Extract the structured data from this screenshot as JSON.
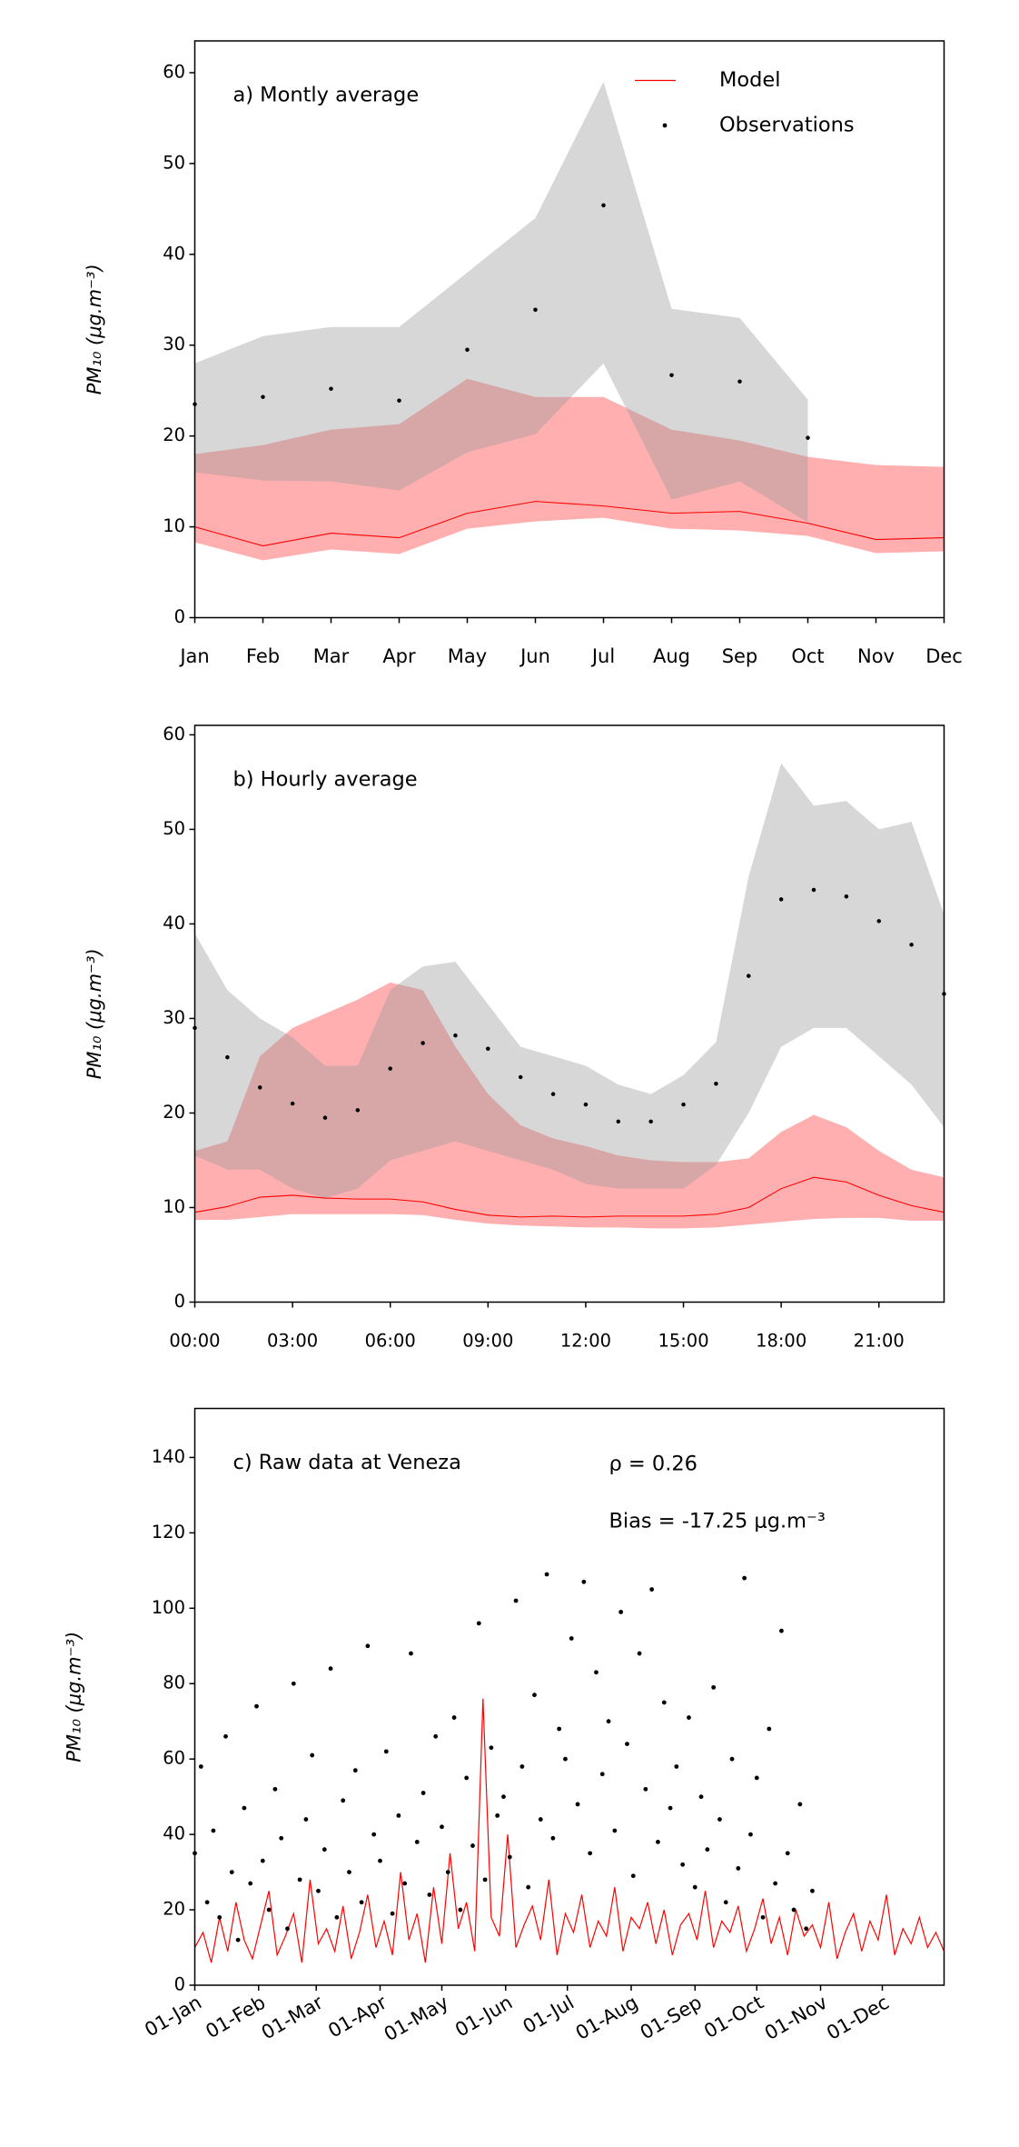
{
  "chart_data": [
    {
      "type": "line",
      "title": "a) Montly average",
      "ylabel": "PM₁₀ (μg.m⁻³)",
      "categories": [
        "Jan",
        "Feb",
        "Mar",
        "Apr",
        "May",
        "Jun",
        "Jul",
        "Aug",
        "Sep",
        "Oct",
        "Nov",
        "Dec"
      ],
      "ylim": [
        0,
        63.5
      ],
      "yticks": [
        0,
        10,
        20,
        30,
        40,
        50,
        60
      ],
      "legend": "upper right",
      "series": [
        {
          "name": "Model",
          "kind": "line",
          "color": "#ff0000",
          "band_color": "#ff2020",
          "values": [
            10,
            7.9,
            9.3,
            8.8,
            11.5,
            12.8,
            12.3,
            11.5,
            11.7,
            10.4,
            8.6,
            8.8
          ],
          "lower": [
            8.3,
            6.3,
            7.5,
            7,
            9.8,
            10.6,
            11,
            9.8,
            9.6,
            9,
            7.1,
            7.3
          ],
          "upper": [
            18,
            19,
            20.7,
            21.3,
            26.3,
            24.3,
            24.3,
            20.7,
            19.5,
            17.7,
            16.8,
            16.6
          ]
        },
        {
          "name": "Observations",
          "kind": "scatter",
          "color": "#000000",
          "band_color": "#9a9a9a",
          "values": [
            23.5,
            24.3,
            25.2,
            23.9,
            29.5,
            33.9,
            45.4,
            26.7,
            26,
            19.8,
            null,
            null
          ],
          "lower": [
            16,
            15.1,
            15,
            14,
            18.2,
            20.2,
            28,
            13,
            15,
            10.5,
            null,
            null
          ],
          "upper": [
            28,
            31,
            32,
            32,
            38,
            44,
            59,
            34,
            33,
            24,
            null,
            null
          ]
        }
      ]
    },
    {
      "type": "line",
      "title": "b) Hourly average",
      "ylabel": "PM₁₀ (μg.m⁻³)",
      "x": [
        0,
        1,
        2,
        3,
        4,
        5,
        6,
        7,
        8,
        9,
        10,
        11,
        12,
        13,
        14,
        15,
        16,
        17,
        18,
        19,
        20,
        21,
        22,
        23
      ],
      "xlim": [
        0,
        23
      ],
      "xticks": [
        {
          "value": 0,
          "label": "00:00"
        },
        {
          "value": 3,
          "label": "03:00"
        },
        {
          "value": 6,
          "label": "06:00"
        },
        {
          "value": 9,
          "label": "09:00"
        },
        {
          "value": 12,
          "label": "12:00"
        },
        {
          "value": 15,
          "label": "15:00"
        },
        {
          "value": 18,
          "label": "18:00"
        },
        {
          "value": 21,
          "label": "21:00"
        }
      ],
      "ylim": [
        0,
        61
      ],
      "yticks": [
        0,
        10,
        20,
        30,
        40,
        50,
        60
      ],
      "series": [
        {
          "kind": "line",
          "color": "#ff0000",
          "band_color": "#ff2020",
          "values": [
            9.5,
            10.1,
            11.1,
            11.3,
            11,
            10.9,
            10.9,
            10.6,
            9.8,
            9.2,
            9,
            9.1,
            9,
            9.1,
            9.1,
            9.1,
            9.3,
            10,
            12,
            13.2,
            12.7,
            11.3,
            10.2,
            9.5
          ],
          "lower": [
            8.7,
            8.7,
            9,
            9.3,
            9.3,
            9.3,
            9.3,
            9.2,
            8.7,
            8.3,
            8.1,
            8,
            7.9,
            7.9,
            7.8,
            7.8,
            7.9,
            8.2,
            8.5,
            8.8,
            8.9,
            8.9,
            8.6,
            8.6
          ],
          "upper": [
            16,
            17,
            26,
            29,
            30.5,
            32,
            33.8,
            33,
            27,
            22,
            18.7,
            17.3,
            16.5,
            15.5,
            15,
            14.8,
            14.8,
            15.2,
            18,
            19.8,
            18.5,
            16,
            14,
            13.2
          ]
        },
        {
          "kind": "scatter",
          "color": "#000000",
          "band_color": "#9a9a9a",
          "values": [
            29,
            25.9,
            22.7,
            21,
            19.5,
            20.3,
            24.7,
            27.4,
            28.2,
            26.8,
            23.8,
            22,
            20.9,
            19.1,
            19.1,
            20.9,
            23.1,
            34.5,
            42.6,
            43.6,
            42.9,
            40.3,
            37.8,
            32.6
          ],
          "lower": [
            15.5,
            14,
            14,
            12,
            11,
            12,
            15,
            16,
            17,
            16,
            15,
            14,
            12.5,
            12,
            12,
            12,
            14.5,
            20,
            27,
            29,
            29,
            26,
            23,
            18.5
          ],
          "upper": [
            39,
            33,
            30,
            28,
            25,
            25,
            33,
            35.5,
            36,
            31.5,
            27,
            26,
            25,
            23,
            22,
            24,
            27.5,
            45,
            57,
            52.5,
            53,
            50,
            50.8,
            41
          ]
        }
      ]
    },
    {
      "type": "line",
      "title": "c) Raw data at Veneza",
      "annotations": [
        "ρ = 0.26",
        "Bias = -17.25 μg.m⁻³"
      ],
      "ylabel": "PM₁₀ (μg.m⁻³)",
      "xlim": [
        0,
        364
      ],
      "xticks": [
        {
          "value": 0,
          "label": "01-Jan"
        },
        {
          "value": 31,
          "label": "01-Feb"
        },
        {
          "value": 59,
          "label": "01-Mar"
        },
        {
          "value": 90,
          "label": "01-Apr"
        },
        {
          "value": 120,
          "label": "01-May"
        },
        {
          "value": 151,
          "label": "01-Jun"
        },
        {
          "value": 181,
          "label": "01-Jul"
        },
        {
          "value": 212,
          "label": "01-Aug"
        },
        {
          "value": 243,
          "label": "01-Sep"
        },
        {
          "value": 273,
          "label": "01-Oct"
        },
        {
          "value": 304,
          "label": "01-Nov"
        },
        {
          "value": 334,
          "label": "01-Dec"
        }
      ],
      "ylim": [
        0,
        153
      ],
      "yticks": [
        0,
        20,
        40,
        60,
        80,
        100,
        120,
        140
      ],
      "series": [
        {
          "kind": "line",
          "color": "#ff0000",
          "x": [
            0,
            4,
            8,
            12,
            16,
            20,
            24,
            28,
            32,
            36,
            40,
            44,
            48,
            52,
            56,
            60,
            64,
            68,
            72,
            76,
            80,
            84,
            88,
            92,
            96,
            100,
            104,
            108,
            112,
            116,
            120,
            124,
            128,
            132,
            136,
            140,
            144,
            148,
            152,
            156,
            160,
            164,
            168,
            172,
            176,
            180,
            184,
            188,
            192,
            196,
            200,
            204,
            208,
            212,
            216,
            220,
            224,
            228,
            232,
            236,
            240,
            244,
            248,
            252,
            256,
            260,
            264,
            268,
            272,
            276,
            280,
            284,
            288,
            292,
            296,
            300,
            304,
            308,
            312,
            316,
            320,
            324,
            328,
            332,
            336,
            340,
            344,
            348,
            352,
            356,
            360,
            364
          ],
          "values": [
            10,
            14,
            6,
            18,
            9,
            22,
            12,
            7,
            16,
            25,
            8,
            13,
            19,
            6,
            28,
            11,
            15,
            9,
            21,
            7,
            14,
            24,
            10,
            17,
            8,
            30,
            12,
            19,
            6,
            26,
            11,
            35,
            15,
            22,
            9,
            76,
            18,
            13,
            40,
            10,
            16,
            21,
            12,
            28,
            8,
            19,
            14,
            24,
            10,
            17,
            13,
            26,
            9,
            18,
            15,
            22,
            11,
            20,
            8,
            16,
            19,
            12,
            25,
            10,
            17,
            14,
            21,
            9,
            15,
            23,
            11,
            18,
            8,
            20,
            13,
            16,
            10,
            22,
            7,
            14,
            19,
            9,
            17,
            12,
            24,
            8,
            15,
            11,
            18,
            10,
            14,
            9
          ]
        },
        {
          "kind": "scatter",
          "color": "#000000",
          "x": [
            0,
            3,
            6,
            9,
            12,
            15,
            18,
            21,
            24,
            27,
            30,
            33,
            36,
            39,
            42,
            45,
            48,
            51,
            54,
            57,
            60,
            63,
            66,
            69,
            72,
            75,
            78,
            81,
            84,
            87,
            90,
            93,
            96,
            99,
            102,
            105,
            108,
            111,
            114,
            117,
            120,
            123,
            126,
            129,
            132,
            135,
            138,
            141,
            144,
            147,
            150,
            153,
            156,
            159,
            162,
            165,
            168,
            171,
            174,
            177,
            180,
            183,
            186,
            189,
            192,
            195,
            198,
            201,
            204,
            207,
            210,
            213,
            216,
            219,
            222,
            225,
            228,
            231,
            234,
            237,
            240,
            243,
            246,
            249,
            252,
            255,
            258,
            261,
            264,
            267,
            270,
            273,
            276,
            279,
            282,
            285,
            288,
            291,
            294,
            297,
            300
          ],
          "values": [
            35,
            58,
            22,
            41,
            18,
            66,
            30,
            12,
            47,
            27,
            74,
            33,
            20,
            52,
            39,
            15,
            80,
            28,
            44,
            61,
            25,
            36,
            84,
            18,
            49,
            30,
            57,
            22,
            90,
            40,
            33,
            62,
            19,
            45,
            27,
            88,
            38,
            51,
            24,
            66,
            42,
            30,
            71,
            20,
            55,
            37,
            96,
            28,
            63,
            45,
            50,
            34,
            102,
            58,
            26,
            77,
            44,
            109,
            39,
            68,
            60,
            92,
            48,
            107,
            35,
            83,
            56,
            70,
            41,
            99,
            64,
            29,
            88,
            52,
            105,
            38,
            75,
            47,
            58,
            32,
            71,
            26,
            50,
            36,
            79,
            44,
            22,
            60,
            31,
            108,
            40,
            55,
            18,
            68,
            27,
            94,
            35,
            20,
            48,
            15,
            25
          ]
        }
      ]
    }
  ]
}
